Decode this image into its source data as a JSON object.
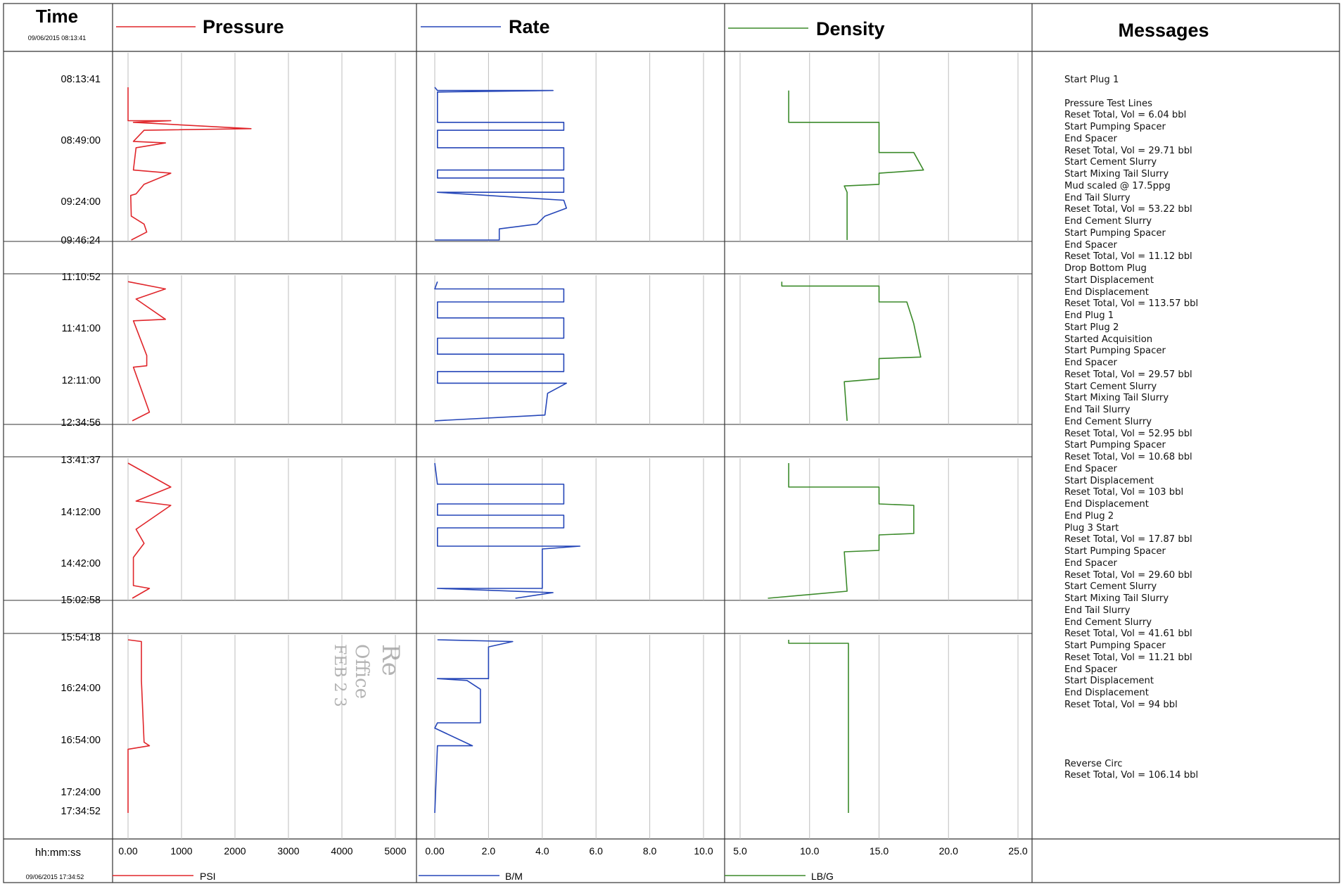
{
  "header": {
    "time_title": "Time",
    "start_datetime": "09/06/2015 08:13:41",
    "pressure_title": "Pressure",
    "rate_title": "Rate",
    "density_title": "Density",
    "messages_title": "Messages"
  },
  "footer": {
    "time_format": "hh:mm:ss",
    "end_datetime": "09/06/2015 17:34:52",
    "pressure_unit": "PSI",
    "rate_unit": "B/M",
    "density_unit": "LB/G"
  },
  "colors": {
    "pressure": "#e0262b",
    "rate": "#2546b8",
    "density": "#3b8a2a",
    "grid": "#bdbdbd",
    "frame": "#333333"
  },
  "stamp": {
    "line1": "Re",
    "line2": "Office",
    "line3": "FEB 2 3"
  },
  "messages": [
    "Start Plug 1",
    "",
    "Pressure Test Lines",
    "Reset Total, Vol = 6.04  bbl",
    "Start Pumping Spacer",
    "End Spacer",
    "Reset Total, Vol = 29.71  bbl",
    "Start Cement Slurry",
    "Start Mixing Tail Slurry",
    "Mud scaled @ 17.5ppg",
    "End Tail Slurry",
    "Reset Total, Vol = 53.22  bbl",
    "End Cement Slurry",
    "Start Pumping Spacer",
    "End Spacer",
    "Reset Total, Vol = 11.12  bbl",
    "Drop Bottom Plug",
    "Start Displacement",
    "End Displacement",
    "Reset Total, Vol = 113.57  bbl",
    "End Plug 1",
    "Start Plug 2",
    "Started Acquisition",
    "Start Pumping Spacer",
    "End Spacer",
    "Reset Total, Vol = 29.57  bbl",
    "Start Cement Slurry",
    "Start Mixing Tail Slurry",
    "End Tail Slurry",
    "End Cement Slurry",
    "Reset Total, Vol = 52.95  bbl",
    "Start Pumping Spacer",
    "Reset Total, Vol = 10.68  bbl",
    "End Spacer",
    "Start Displacement",
    "Reset Total, Vol = 103  bbl",
    "End Displacement",
    "End Plug 2",
    "Plug 3 Start",
    "Reset Total, Vol = 17.87  bbl",
    "Start Pumping Spacer",
    "End Spacer",
    "Reset Total, Vol = 29.60  bbl",
    "Start Cement Slurry",
    "Start Mixing Tail Slurry",
    "End Tail Slurry",
    "End Cement Slurry",
    "Reset Total, Vol = 41.61  bbl",
    "Start Pumping Spacer",
    "Reset Total, Vol = 11.21  bbl",
    "End Spacer",
    "Start Displacement",
    "End Displacement",
    "Reset Total, Vol = 94  bbl",
    "",
    "",
    "",
    "",
    "Reverse Circ",
    "Reset Total, Vol = 106.14  bbl"
  ],
  "chart_data": {
    "type": "line",
    "title": "",
    "y_axis": "time (hh:mm:ss), increasing downward",
    "x_axes": [
      {
        "name": "Pressure",
        "unit": "PSI",
        "range": [
          0,
          5000
        ],
        "ticks": [
          "0.00",
          "1000",
          "2000",
          "3000",
          "4000",
          "5000"
        ]
      },
      {
        "name": "Rate",
        "unit": "B/M",
        "range": [
          0,
          10
        ],
        "ticks": [
          "0.00",
          "2.0",
          "4.0",
          "6.0",
          "8.0",
          "10.0"
        ]
      },
      {
        "name": "Density",
        "unit": "LB/G",
        "range": [
          5,
          25
        ],
        "ticks": [
          "5.0",
          "10.0",
          "15.0",
          "20.0",
          "25.0"
        ]
      }
    ],
    "grid": true,
    "segments": [
      {
        "start": "08:13:41",
        "end": "09:46:24",
        "time_labels": [
          "08:13:41",
          "08:49:00",
          "09:24:00",
          "09:46:24"
        ],
        "pressure": [
          [
            0,
            40
          ],
          [
            0,
            250
          ],
          [
            800,
            250
          ],
          [
            100,
            260
          ],
          [
            2300,
            300
          ],
          [
            300,
            310
          ],
          [
            100,
            380
          ],
          [
            700,
            390
          ],
          [
            150,
            420
          ],
          [
            100,
            560
          ],
          [
            800,
            580
          ],
          [
            300,
            650
          ],
          [
            150,
            710
          ],
          [
            50,
            720
          ],
          [
            60,
            850
          ],
          [
            300,
            900
          ],
          [
            350,
            950
          ],
          [
            60,
            1000
          ]
        ],
        "rate": [
          [
            0,
            40
          ],
          [
            0.1,
            60
          ],
          [
            4.4,
            60
          ],
          [
            0.1,
            70
          ],
          [
            0.1,
            260
          ],
          [
            4.8,
            260
          ],
          [
            4.8,
            310
          ],
          [
            0.1,
            310
          ],
          [
            0.1,
            420
          ],
          [
            4.8,
            420
          ],
          [
            4.8,
            560
          ],
          [
            0.1,
            560
          ],
          [
            0.1,
            610
          ],
          [
            4.8,
            610
          ],
          [
            4.8,
            700
          ],
          [
            0.1,
            700
          ],
          [
            4.8,
            750
          ],
          [
            4.9,
            800
          ],
          [
            4.1,
            850
          ],
          [
            3.8,
            900
          ],
          [
            2.4,
            930
          ],
          [
            2.4,
            1000
          ],
          [
            0,
            1000
          ]
        ],
        "density": [
          [
            8.5,
            60
          ],
          [
            8.5,
            260
          ],
          [
            15,
            260
          ],
          [
            15,
            450
          ],
          [
            17.5,
            450
          ],
          [
            18.2,
            560
          ],
          [
            15,
            580
          ],
          [
            15,
            650
          ],
          [
            12.5,
            660
          ],
          [
            12.7,
            700
          ],
          [
            12.7,
            1000
          ]
        ]
      },
      {
        "start": "11:10:52",
        "end": "12:34:56",
        "time_labels": [
          "11:10:52",
          "11:41:00",
          "12:11:00",
          "12:34:56"
        ],
        "pressure": [
          [
            0,
            30
          ],
          [
            700,
            80
          ],
          [
            150,
            150
          ],
          [
            700,
            290
          ],
          [
            100,
            300
          ],
          [
            350,
            540
          ],
          [
            350,
            610
          ],
          [
            100,
            620
          ],
          [
            400,
            930
          ],
          [
            80,
            990
          ]
        ],
        "rate": [
          [
            0.1,
            30
          ],
          [
            0,
            80
          ],
          [
            4.8,
            80
          ],
          [
            4.8,
            170
          ],
          [
            0.1,
            170
          ],
          [
            0.1,
            280
          ],
          [
            4.8,
            280
          ],
          [
            4.8,
            420
          ],
          [
            0.1,
            420
          ],
          [
            0.1,
            530
          ],
          [
            4.8,
            530
          ],
          [
            4.8,
            650
          ],
          [
            0.1,
            650
          ],
          [
            0.1,
            730
          ],
          [
            4.9,
            730
          ],
          [
            4.2,
            800
          ],
          [
            4.1,
            950
          ],
          [
            0,
            990
          ]
        ],
        "density": [
          [
            8,
            30
          ],
          [
            8,
            60
          ],
          [
            15,
            60
          ],
          [
            15,
            170
          ],
          [
            17,
            170
          ],
          [
            17.5,
            320
          ],
          [
            18,
            550
          ],
          [
            15,
            560
          ],
          [
            15,
            700
          ],
          [
            12.5,
            720
          ],
          [
            12.7,
            990
          ]
        ]
      },
      {
        "start": "13:41:37",
        "end": "15:02:58",
        "time_labels": [
          "13:41:37",
          "14:12:00",
          "14:42:00",
          "15:02:58"
        ],
        "pressure": [
          [
            0,
            30
          ],
          [
            800,
            200
          ],
          [
            150,
            300
          ],
          [
            800,
            330
          ],
          [
            150,
            500
          ],
          [
            300,
            600
          ],
          [
            100,
            700
          ],
          [
            100,
            900
          ],
          [
            400,
            920
          ],
          [
            80,
            990
          ]
        ],
        "rate": [
          [
            0,
            30
          ],
          [
            0.1,
            180
          ],
          [
            4.8,
            180
          ],
          [
            4.8,
            320
          ],
          [
            0.1,
            320
          ],
          [
            0.1,
            400
          ],
          [
            4.8,
            400
          ],
          [
            4.8,
            490
          ],
          [
            0.1,
            490
          ],
          [
            0.1,
            620
          ],
          [
            5.4,
            620
          ],
          [
            4,
            640
          ],
          [
            4,
            920
          ],
          [
            0.1,
            920
          ],
          [
            4.4,
            950
          ],
          [
            3,
            990
          ]
        ],
        "density": [
          [
            8.5,
            30
          ],
          [
            8.5,
            200
          ],
          [
            15,
            200
          ],
          [
            15,
            320
          ],
          [
            17.5,
            330
          ],
          [
            17.5,
            530
          ],
          [
            15,
            540
          ],
          [
            15,
            650
          ],
          [
            12.5,
            660
          ],
          [
            12.7,
            940
          ],
          [
            7,
            990
          ]
        ]
      },
      {
        "start": "15:54:18",
        "end": "17:34:52",
        "time_labels": [
          "15:54:18",
          "16:24:00",
          "16:54:00",
          "17:24:00",
          "17:34:52"
        ],
        "pressure": [
          [
            0,
            20
          ],
          [
            250,
            30
          ],
          [
            250,
            240
          ],
          [
            250,
            250
          ],
          [
            300,
            600
          ],
          [
            400,
            620
          ],
          [
            0,
            640
          ],
          [
            0,
            1000
          ]
        ],
        "rate": [
          [
            0.1,
            20
          ],
          [
            2.9,
            30
          ],
          [
            2,
            60
          ],
          [
            2,
            240
          ],
          [
            0.1,
            240
          ],
          [
            1.2,
            250
          ],
          [
            1.7,
            300
          ],
          [
            1.7,
            490
          ],
          [
            0.1,
            490
          ],
          [
            0,
            520
          ],
          [
            1.4,
            620
          ],
          [
            0.1,
            620
          ],
          [
            0,
            1000
          ]
        ],
        "density": [
          [
            8.5,
            20
          ],
          [
            8.5,
            40
          ],
          [
            12.8,
            40
          ],
          [
            12.8,
            1000
          ]
        ]
      }
    ]
  }
}
